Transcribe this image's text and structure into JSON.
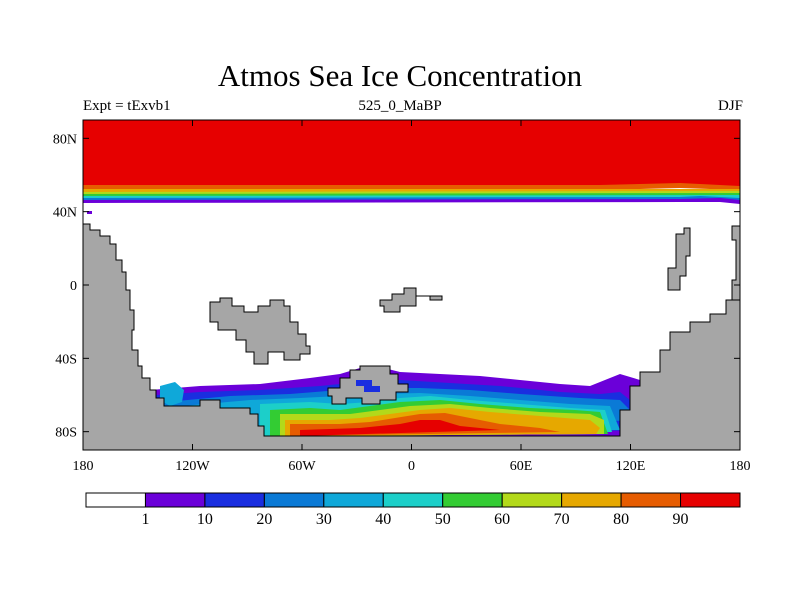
{
  "title": "Atmos Sea Ice Concentration",
  "subtitle_left": "Expt = tExvb1",
  "subtitle_center": "525_0_MaBP",
  "subtitle_right": "DJF",
  "map": {
    "projection": "cylindrical equidistant",
    "lon_range": [
      -180,
      180
    ],
    "lat_range": [
      -90,
      90
    ],
    "lon_ticks": [
      {
        "value": -180,
        "label": "180"
      },
      {
        "value": -120,
        "label": "120W"
      },
      {
        "value": -60,
        "label": "60W"
      },
      {
        "value": 0,
        "label": "0"
      },
      {
        "value": 60,
        "label": "60E"
      },
      {
        "value": 120,
        "label": "120E"
      },
      {
        "value": 180,
        "label": "180"
      }
    ],
    "lat_ticks": [
      {
        "value": 80,
        "label": "80N"
      },
      {
        "value": 40,
        "label": "40N"
      },
      {
        "value": 0,
        "label": "0"
      },
      {
        "value": -40,
        "label": "40S"
      },
      {
        "value": -80,
        "label": "80S"
      }
    ],
    "land_color": "#a6a6a6",
    "ocean_no_ice_color": "#ffffff"
  },
  "colorbar": {
    "labels": [
      "1",
      "10",
      "20",
      "30",
      "40",
      "50",
      "60",
      "70",
      "80",
      "90"
    ],
    "colors": [
      "#ffffff",
      "#6b00d9",
      "#1a2ee0",
      "#0a7ad6",
      "#0fa8d9",
      "#1ccfc9",
      "#33cc33",
      "#b3d91a",
      "#e6a800",
      "#e65c00",
      "#e60000"
    ]
  }
}
